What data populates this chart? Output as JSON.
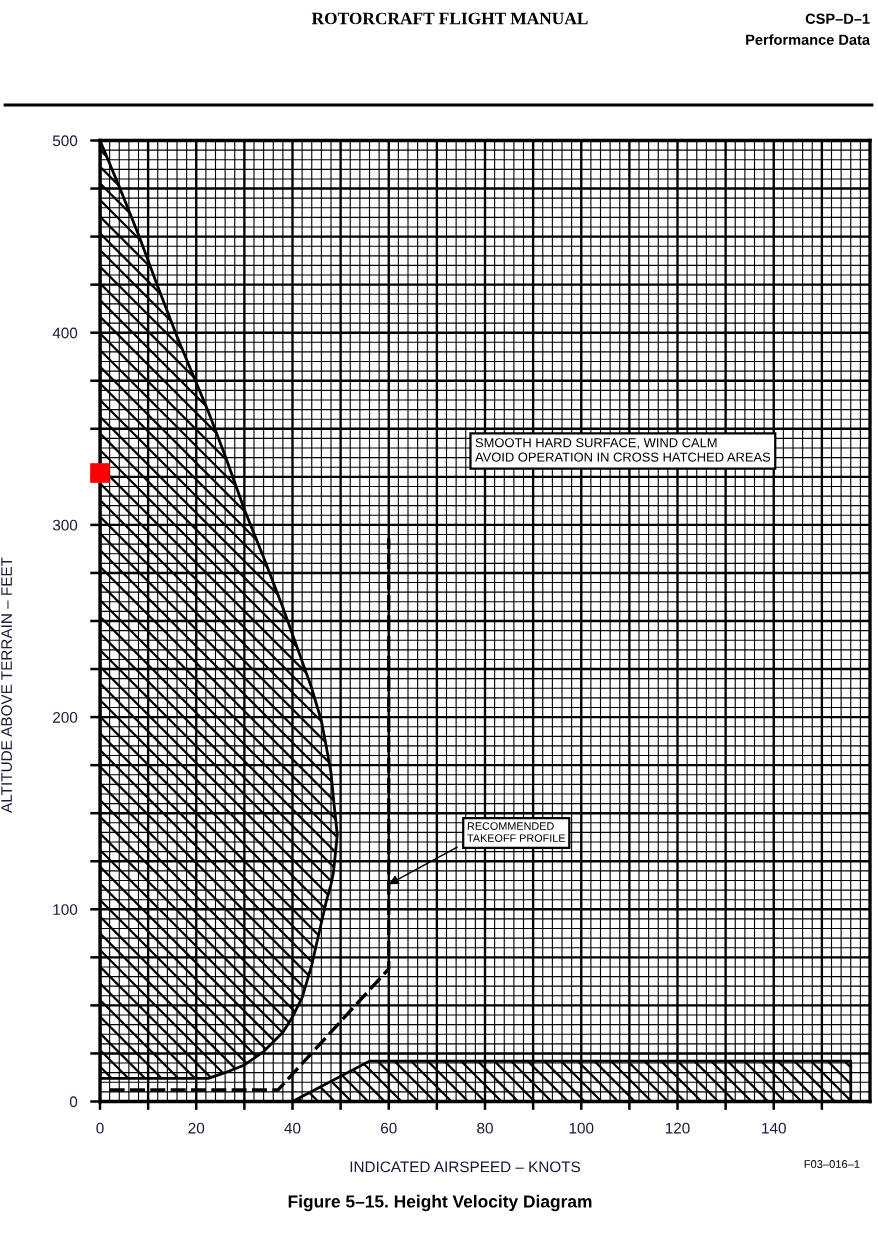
{
  "chart_data": {
    "type": "area",
    "title": "Figure 5–15. Height Velocity Diagram",
    "xlabel": "INDICATED AIRSPEED – KNOTS",
    "ylabel": "ALTITUDE ABOVE TERRAIN – FEET",
    "xlim": [
      0,
      160
    ],
    "ylim": [
      0,
      500
    ],
    "xticks": [
      0,
      {
        "value": 10,
        "label": null
      },
      20,
      {
        "value": 30,
        "label": null
      },
      40,
      {
        "value": 50,
        "label": null
      },
      60,
      {
        "value": 70,
        "label": null
      },
      80,
      {
        "value": 90,
        "label": null
      },
      100,
      {
        "value": 110,
        "label": null
      },
      120,
      {
        "value": 130,
        "label": null
      },
      140,
      {
        "value": 150,
        "label": null
      }
    ],
    "yticks": [
      0,
      {
        "value": 25,
        "label": null
      },
      {
        "value": 50,
        "label": null
      },
      {
        "value": 75,
        "label": null
      },
      100,
      {
        "value": 125,
        "label": null
      },
      {
        "value": 150,
        "label": null
      },
      {
        "value": 175,
        "label": null
      },
      200,
      {
        "value": 225,
        "label": null
      },
      {
        "value": 250,
        "label": null
      },
      {
        "value": 275,
        "label": null
      },
      300,
      {
        "value": 325,
        "label": null
      },
      {
        "value": 350,
        "label": null
      },
      {
        "value": 375,
        "label": null
      },
      400,
      {
        "value": 425,
        "label": null
      },
      {
        "value": 450,
        "label": null
      },
      {
        "value": 475,
        "label": null
      },
      500
    ],
    "grid": true,
    "series": [
      {
        "color": "#000000",
        "x": [
          0,
          4,
          8,
          12,
          16,
          20,
          22.5,
          26,
          30,
          34,
          38,
          40,
          42,
          44,
          46,
          47,
          48,
          48.5,
          49,
          49.3,
          49,
          48.5,
          48,
          47,
          46,
          44,
          42,
          40,
          38,
          34,
          30,
          26,
          22.5,
          0
        ],
        "values": [
          500,
          476,
          451,
          424,
          398,
          374,
          359,
          336,
          308,
          283,
          257,
          243,
          229,
          215,
          198,
          185,
          171,
          158,
          146,
          139,
          131,
          119,
          113,
          104,
          93,
          71,
          54,
          44,
          36,
          26,
          19,
          15,
          12,
          12
        ]
      },
      {
        "color": "#000000",
        "x": [
          40,
          56,
          156,
          156
        ],
        "values": [
          0,
          21,
          21,
          0
        ]
      },
      {
        "type": "line",
        "color": "#000000",
        "line_style": "dashed",
        "x": [
          2,
          37,
          60,
          60
        ],
        "values": [
          6,
          6,
          69,
          293
        ]
      },
      {
        "type": "scatter",
        "color": "#ff0000",
        "marker": "square",
        "x": [
          0
        ],
        "values": [
          327
        ]
      }
    ],
    "annotations": [
      "ROTORCRAFT FLIGHT MANUAL",
      "CSP–D–1",
      "Performance Data",
      "SMOOTH HARD SURFACE, WIND CALM\nAVOID OPERATION IN CROSS HATCHED AREAS",
      {
        "text": "RECOMMENDED\nTAKEOFF PROFILE",
        "x": 60,
        "y": 113
      },
      "F03–016–1"
    ]
  }
}
